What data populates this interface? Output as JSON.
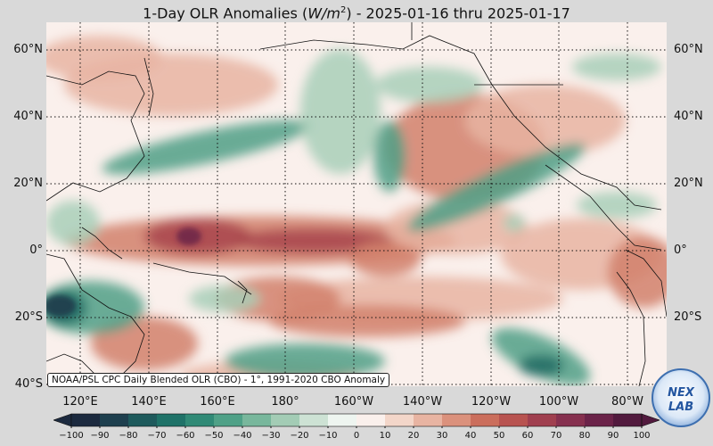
{
  "title_main": "1-Day OLR Anomalies (",
  "title_unit_base": "W/m",
  "title_unit_exp": "2",
  "title_dates": ") - 2025-01-16 thru 2025-01-17",
  "lat_labels": [
    "60°N",
    "40°N",
    "20°N",
    "0°",
    "20°S",
    "40°S"
  ],
  "lon_labels": [
    "120°E",
    "140°E",
    "160°E",
    "180°",
    "160°W",
    "140°W",
    "120°W",
    "100°W",
    "80°W"
  ],
  "note": "NOAA/PSL CPC Daily Blended OLR (CBO) - 1°, 1991-2020 CBO Anomaly",
  "logo_text": "NEX LAB",
  "colorbar": {
    "ticks": [
      "−100",
      "−90",
      "−80",
      "−70",
      "−60",
      "−50",
      "−40",
      "−30",
      "−20",
      "−10",
      "0",
      "10",
      "20",
      "30",
      "40",
      "50",
      "60",
      "70",
      "80",
      "90",
      "100"
    ],
    "colors": [
      "#1c2a3f",
      "#1e3f4e",
      "#1e5a5c",
      "#1f7268",
      "#308a76",
      "#4fa187",
      "#78b79c",
      "#a3ccb5",
      "#cde2d4",
      "#eef5f0",
      "#faf0ec",
      "#f3d6c9",
      "#e8b4a2",
      "#db917c",
      "#cb6e5c",
      "#b85350",
      "#a03f4f",
      "#86304f",
      "#6b2349",
      "#521a3e"
    ]
  },
  "map_colors": {
    "ocean": "#f6e4df",
    "neutral": "#faf0ec",
    "green_light": "#a8cfb9",
    "green_mid": "#4f9f86",
    "green_dark": "#1f6b63",
    "teal_darkest": "#1c3a4a",
    "red_light": "#e8b4a2",
    "red_mid": "#d1806b",
    "red_dark": "#a8454c",
    "purple": "#6b2349"
  }
}
